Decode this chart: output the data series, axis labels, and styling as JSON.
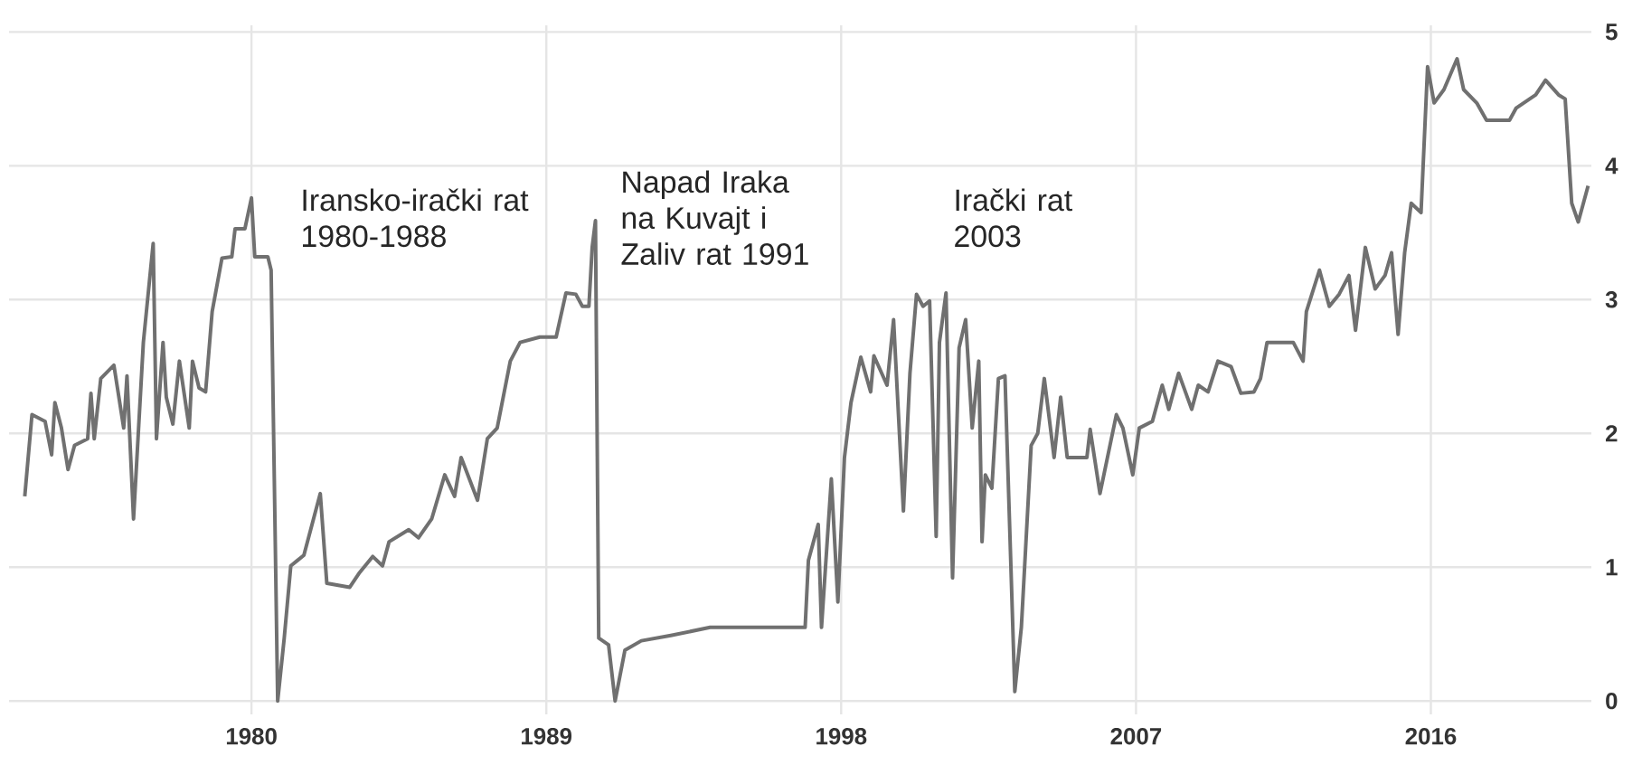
{
  "chart_data": {
    "type": "line",
    "x": [
      1973.08,
      1973.3,
      1973.7,
      1973.9,
      1974.0,
      1974.2,
      1974.4,
      1974.6,
      1975.0,
      1975.1,
      1975.2,
      1975.4,
      1975.8,
      1976.1,
      1976.2,
      1976.4,
      1976.7,
      1977.0,
      1977.1,
      1977.3,
      1977.4,
      1977.6,
      1977.8,
      1978.1,
      1978.2,
      1978.4,
      1978.6,
      1978.8,
      1979.1,
      1979.4,
      1979.5,
      1979.8,
      1980.0,
      1980.1,
      1980.5,
      1980.6,
      1980.8,
      1981.0,
      1981.2,
      1981.4,
      1981.6,
      1982.1,
      1982.3,
      1983.0,
      1983.3,
      1983.7,
      1984.0,
      1984.2,
      1984.8,
      1985.1,
      1985.5,
      1985.9,
      1986.2,
      1986.4,
      1986.9,
      1987.2,
      1987.5,
      1987.9,
      1988.2,
      1988.8,
      1989.3,
      1989.6,
      1989.9,
      1990.1,
      1990.3,
      1990.4,
      1990.5,
      1990.6,
      1990.9,
      1991.1,
      1991.4,
      1991.9,
      1992.8,
      1994.0,
      1996.9,
      1997.0,
      1997.3,
      1997.4,
      1997.7,
      1997.9,
      1998.1,
      1998.3,
      1998.6,
      1998.9,
      1999.0,
      1999.4,
      1999.6,
      1999.9,
      2000.1,
      2000.3,
      2000.5,
      2000.7,
      2000.9,
      2001.0,
      2001.2,
      2001.4,
      2001.6,
      2001.8,
      2002.0,
      2002.2,
      2002.3,
      2002.4,
      2002.6,
      2002.8,
      2003.0,
      2003.3,
      2003.5,
      2003.8,
      2004.0,
      2004.2,
      2004.5,
      2004.7,
      2004.9,
      2005.5,
      2005.6,
      2005.9,
      2006.4,
      2006.6,
      2006.9,
      2007.1,
      2007.5,
      2007.8,
      2008.0,
      2008.3,
      2008.7,
      2008.9,
      2009.2,
      2009.5,
      2009.9,
      2010.2,
      2010.6,
      2010.8,
      2011.0,
      2011.8,
      2012.1,
      2012.2,
      2012.6,
      2012.9,
      2013.2,
      2013.5,
      2013.7,
      2014.0,
      2014.3,
      2014.6,
      2014.8,
      2015.0,
      2015.2,
      2015.4,
      2015.7,
      2015.9,
      2016.1,
      2016.4,
      2016.8,
      2017.0,
      2017.4,
      2017.7,
      2018.4,
      2018.6,
      2019.2,
      2019.5,
      2019.9,
      2020.1,
      2020.3,
      2020.5,
      2020.8
    ],
    "series": [
      {
        "color": "#707070",
        "values": [
          1.53,
          2.14,
          2.09,
          1.84,
          2.23,
          2.04,
          1.73,
          1.91,
          1.96,
          2.3,
          1.96,
          2.41,
          2.51,
          2.04,
          2.43,
          1.36,
          2.68,
          3.42,
          1.96,
          2.68,
          2.27,
          2.07,
          2.54,
          2.04,
          2.54,
          2.34,
          2.31,
          2.91,
          3.31,
          3.32,
          3.53,
          3.53,
          3.76,
          3.32,
          3.32,
          3.22,
          0.0,
          0.47,
          1.01,
          1.05,
          1.09,
          1.55,
          0.88,
          0.85,
          0.96,
          1.08,
          1.01,
          1.19,
          1.28,
          1.22,
          1.36,
          1.69,
          1.53,
          1.82,
          1.5,
          1.96,
          2.04,
          2.54,
          2.68,
          2.72,
          2.72,
          3.05,
          3.04,
          2.95,
          2.95,
          3.39,
          3.59,
          0.47,
          0.42,
          0.0,
          0.38,
          0.45,
          0.49,
          0.55,
          0.55,
          1.05,
          1.32,
          0.55,
          1.66,
          0.74,
          1.82,
          2.23,
          2.57,
          2.31,
          2.58,
          2.36,
          2.85,
          1.42,
          2.45,
          3.04,
          2.95,
          2.99,
          1.23,
          2.68,
          3.05,
          0.92,
          2.64,
          2.85,
          2.04,
          2.54,
          1.19,
          1.69,
          1.59,
          2.41,
          2.43,
          0.07,
          0.55,
          1.91,
          2.0,
          2.41,
          1.82,
          2.27,
          1.82,
          1.82,
          2.03,
          1.55,
          2.14,
          2.04,
          1.69,
          2.04,
          2.09,
          2.36,
          2.18,
          2.45,
          2.18,
          2.36,
          2.31,
          2.54,
          2.5,
          2.3,
          2.31,
          2.41,
          2.68,
          2.68,
          2.54,
          2.91,
          3.22,
          2.95,
          3.04,
          3.18,
          2.77,
          3.39,
          3.08,
          3.18,
          3.35,
          2.74,
          3.35,
          3.72,
          3.65,
          4.74,
          4.47,
          4.57,
          4.8,
          4.57,
          4.47,
          4.34,
          4.34,
          4.43,
          4.53,
          4.64,
          4.53,
          4.5,
          3.72,
          3.58,
          3.85
        ]
      }
    ],
    "xlim": [
      1972.6,
      2020.9
    ],
    "ylim": [
      -0.1,
      5.05
    ],
    "xticks": [
      1980,
      1989,
      1998,
      2007,
      2016
    ],
    "yticks": [
      0,
      1,
      2,
      3,
      4,
      5
    ],
    "grid": true,
    "marker": "none",
    "line_style": "solid",
    "annotations": [
      "Iransko-irački rat 1980-1988",
      "Napad Iraka na Kuvajt i Zaliv rat 1991",
      "Irački rat 2003"
    ]
  }
}
